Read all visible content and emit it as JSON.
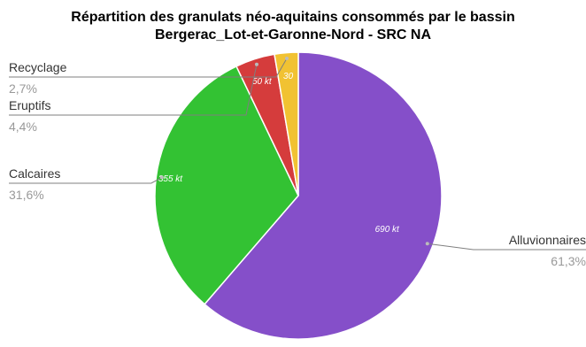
{
  "chart_data": {
    "type": "pie",
    "title_line1": "Répartition des granulats néo-aquitains consommés par le bassin",
    "title_line2": "Bergerac_Lot-et-Garonne-Nord - SRC NA",
    "slices": [
      {
        "name": "Alluvionnaires",
        "value": 690,
        "percent": "61,3%",
        "value_label": "690 kt",
        "color": "#854fc9"
      },
      {
        "name": "Calcaires",
        "value": 355,
        "percent": "31,6%",
        "value_label": "355 kt",
        "color": "#33c233"
      },
      {
        "name": "Eruptifs",
        "value": 50,
        "percent": "4,4%",
        "value_label": "50 kt",
        "color": "#d53c3c"
      },
      {
        "name": "Recyclage",
        "value": 30,
        "percent": "2,7%",
        "value_label": "30",
        "color": "#f1c232"
      }
    ],
    "label_color": "#333333",
    "percent_color": "#999999",
    "leader_color": "#7f7f7f"
  }
}
